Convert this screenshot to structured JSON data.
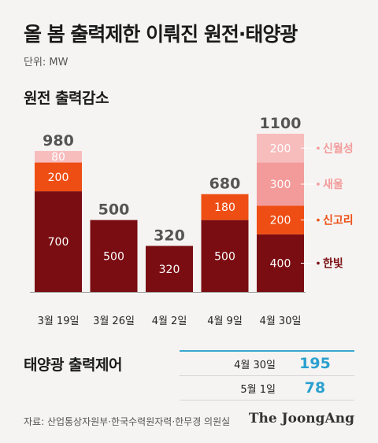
{
  "title": "올 봄 출력제한 이뤄진 원전·태양광",
  "unit": "단위: MW",
  "section1_title": "원전 출력감소",
  "section2_title": "태양광 출력제어",
  "source": "자료: 산업통상자원부·한국수력원자력·한무경 의원실",
  "logo": "The JoongAng",
  "colors": {
    "hanbit": "#7a0d12",
    "singori": "#ee4e14",
    "saeul": "#f39a9a",
    "sinwolseong": "#f7bcbc",
    "solar_value": "#2aa0cf"
  },
  "chart_data": {
    "type": "bar",
    "categories": [
      "3월 19일",
      "3월 26일",
      "4월 2일",
      "4월 9일",
      "4월 30일"
    ],
    "series": [
      {
        "name": "한빛",
        "values": [
          700,
          500,
          320,
          500,
          400
        ]
      },
      {
        "name": "신고리",
        "values": [
          200,
          0,
          0,
          180,
          200
        ]
      },
      {
        "name": "새울",
        "values": [
          0,
          0,
          0,
          0,
          300
        ]
      },
      {
        "name": "신월성",
        "values": [
          80,
          0,
          0,
          0,
          200
        ]
      }
    ],
    "totals": [
      980,
      500,
      320,
      680,
      1100
    ],
    "ylim": [
      0,
      1100
    ]
  },
  "solar_table": [
    {
      "date": "4월 30일",
      "value": "195"
    },
    {
      "date": "5월 1일",
      "value": "78"
    }
  ]
}
